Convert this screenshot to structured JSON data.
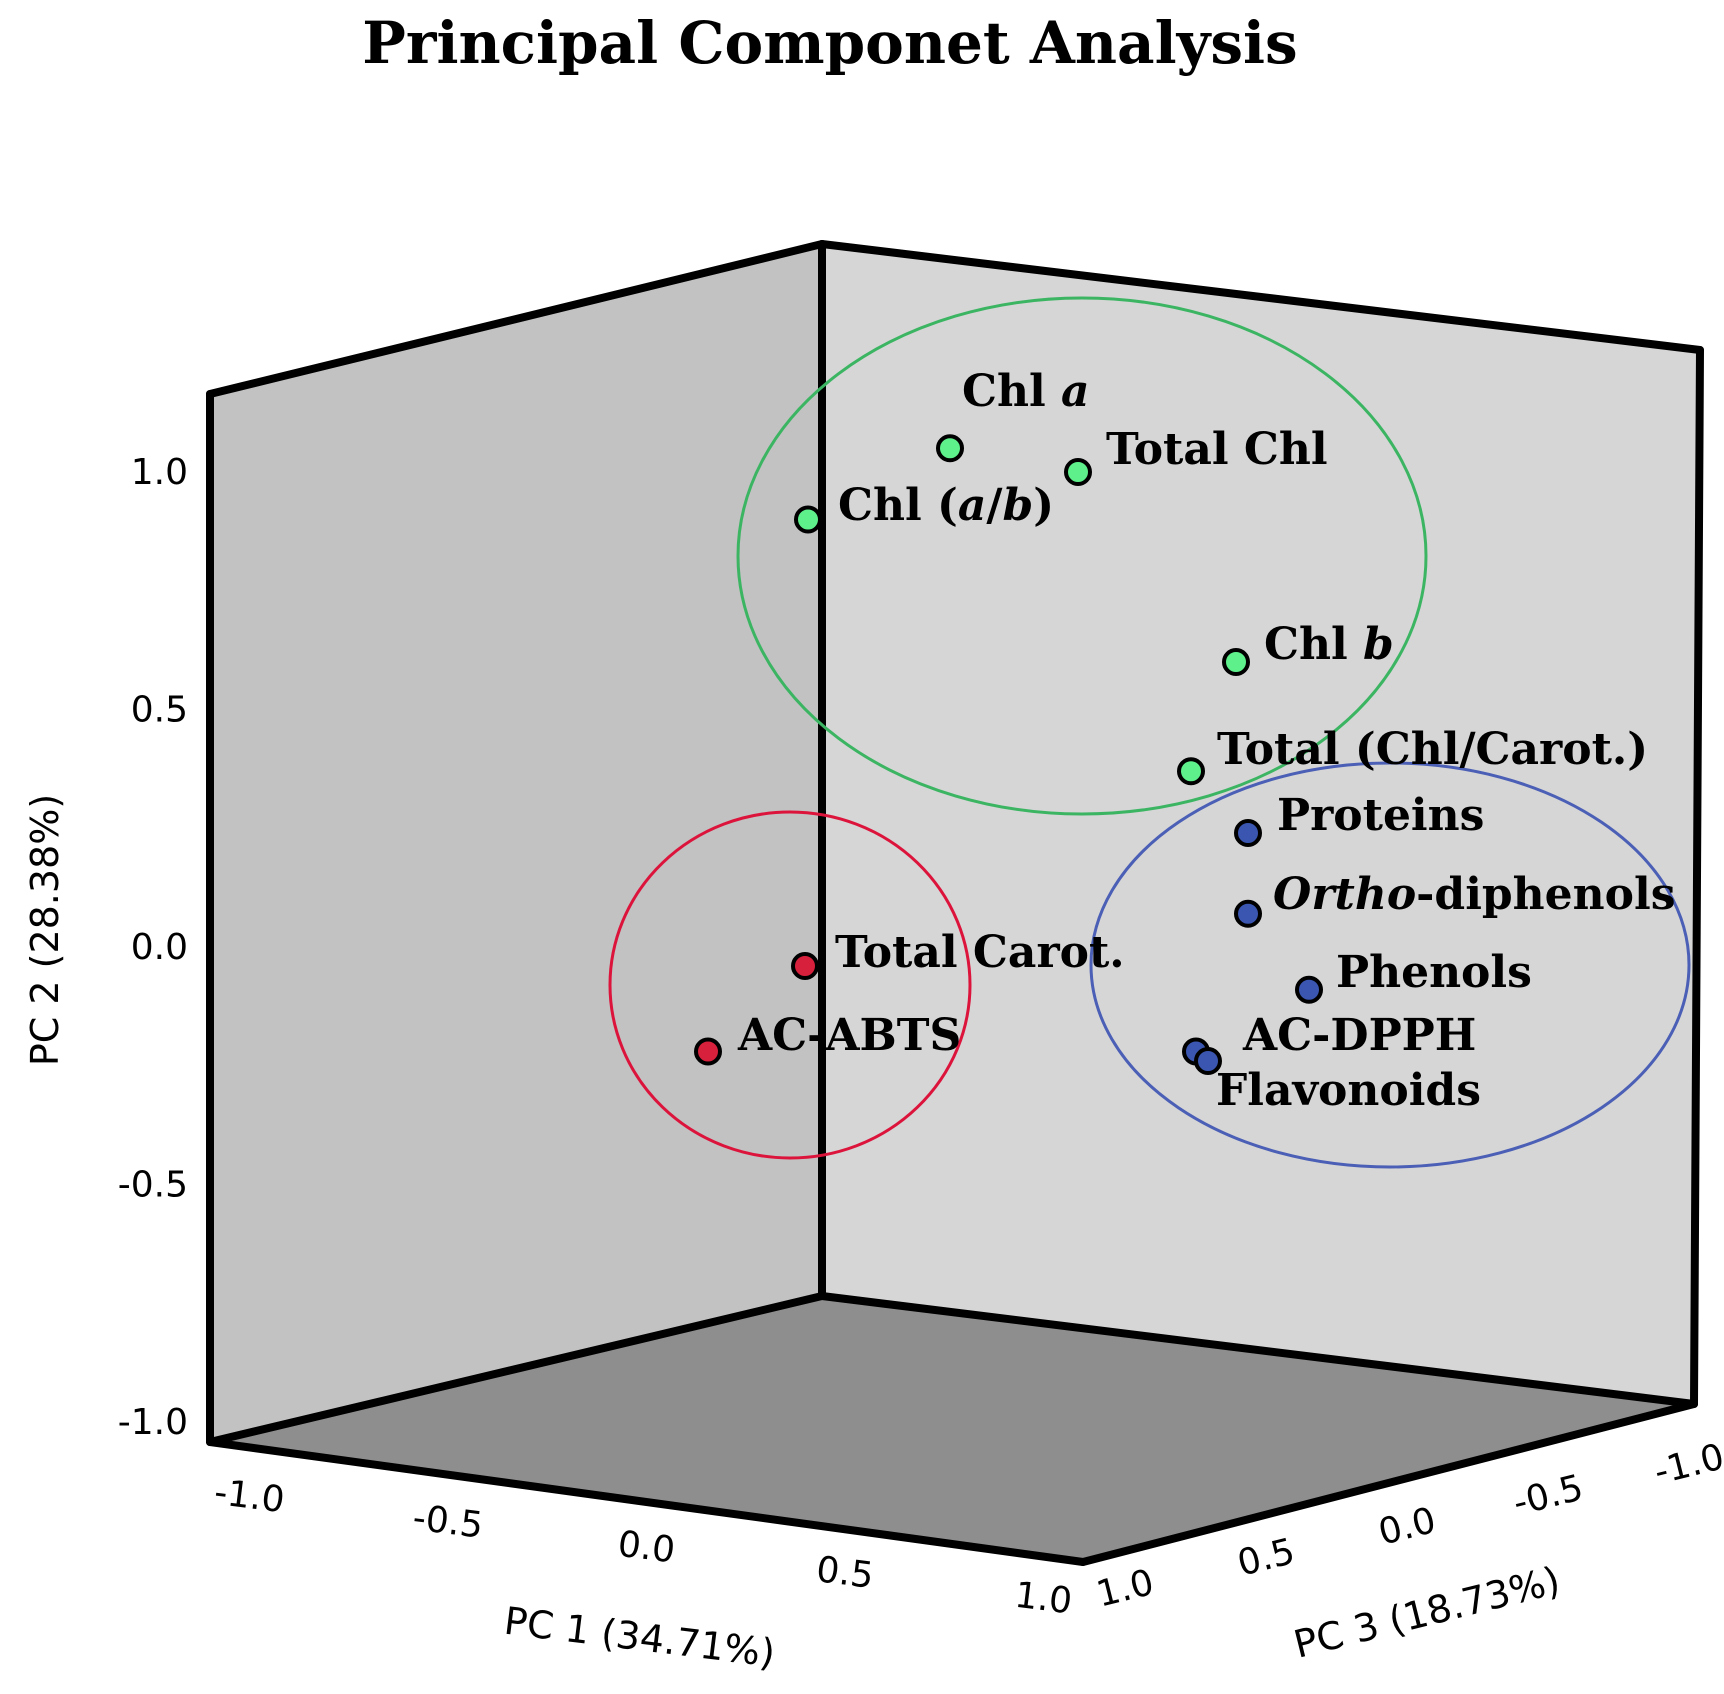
{
  "chart_data": {
    "type": "scatter",
    "title": "Principal Componet Analysis",
    "axes": {
      "x": {
        "label": "PC 1 (34.71%)",
        "range": [
          -1.0,
          1.0
        ],
        "ticks": [
          "-1.0",
          "-0.5",
          "0.0",
          "0.5",
          "1.0"
        ]
      },
      "y": {
        "label": "PC 2 (28.38%)",
        "range": [
          -1.0,
          1.0
        ],
        "ticks": [
          "1.0",
          "0.5",
          "0.0",
          "-0.5",
          "-1.0"
        ]
      },
      "z": {
        "label": "PC 3 (18.73%)",
        "range": [
          -1.0,
          1.0
        ],
        "ticks": [
          "1.0",
          "0.5",
          "0.0",
          "-0.5",
          "-1.0"
        ]
      }
    },
    "groups": [
      {
        "color": "#3cb563",
        "point_color": "#5ef08b"
      },
      {
        "color": "#dc143c",
        "point_color": "#d6203c"
      },
      {
        "color": "#4a5fb5",
        "point_color": "#3a56b0"
      }
    ],
    "points": [
      {
        "label": "Chl a",
        "label_parts": [
          {
            "t": "Chl "
          },
          {
            "t": "a",
            "i": true
          }
        ],
        "group": 0,
        "pc2": 1.05
      },
      {
        "label": "Total Chl",
        "label_parts": [
          {
            "t": "Total Chl"
          }
        ],
        "group": 0,
        "pc2": 1.0
      },
      {
        "label": "Chl (a/b)",
        "label_parts": [
          {
            "t": "Chl ("
          },
          {
            "t": "a",
            "i": true
          },
          {
            "t": "/"
          },
          {
            "t": "b",
            "i": true
          },
          {
            "t": ")"
          }
        ],
        "group": 0,
        "pc2": 0.9
      },
      {
        "label": "Chl b",
        "label_parts": [
          {
            "t": "Chl "
          },
          {
            "t": "b",
            "i": true
          }
        ],
        "group": 0,
        "pc2": 0.6
      },
      {
        "label": "Total (Chl/Carot.)",
        "label_parts": [
          {
            "t": "Total (Chl/Carot.)"
          }
        ],
        "group": 0,
        "pc2": 0.37
      },
      {
        "label": "Proteins",
        "label_parts": [
          {
            "t": "Proteins"
          }
        ],
        "group": 2,
        "pc2": 0.24
      },
      {
        "label": "Ortho-diphenols",
        "label_parts": [
          {
            "t": "Ortho",
            "i": true
          },
          {
            "t": "-diphenols"
          }
        ],
        "group": 2,
        "pc2": 0.07
      },
      {
        "label": "Total Carot.",
        "label_parts": [
          {
            "t": "Total Carot."
          }
        ],
        "group": 1,
        "pc2": -0.04
      },
      {
        "label": "Phenols",
        "label_parts": [
          {
            "t": "Phenols"
          }
        ],
        "group": 2,
        "pc2": -0.09
      },
      {
        "label": "AC-ABTS",
        "label_parts": [
          {
            "t": "AC-ABTS"
          }
        ],
        "group": 1,
        "pc2": -0.22
      },
      {
        "label": "AC-DPPH",
        "label_parts": [
          {
            "t": "AC-DPPH"
          }
        ],
        "group": 2,
        "pc2": -0.22
      },
      {
        "label": "Flavonoids",
        "label_parts": [
          {
            "t": "Flavonoids"
          }
        ],
        "group": 2,
        "pc2": -0.24
      }
    ],
    "grid": false,
    "legend": "none"
  }
}
